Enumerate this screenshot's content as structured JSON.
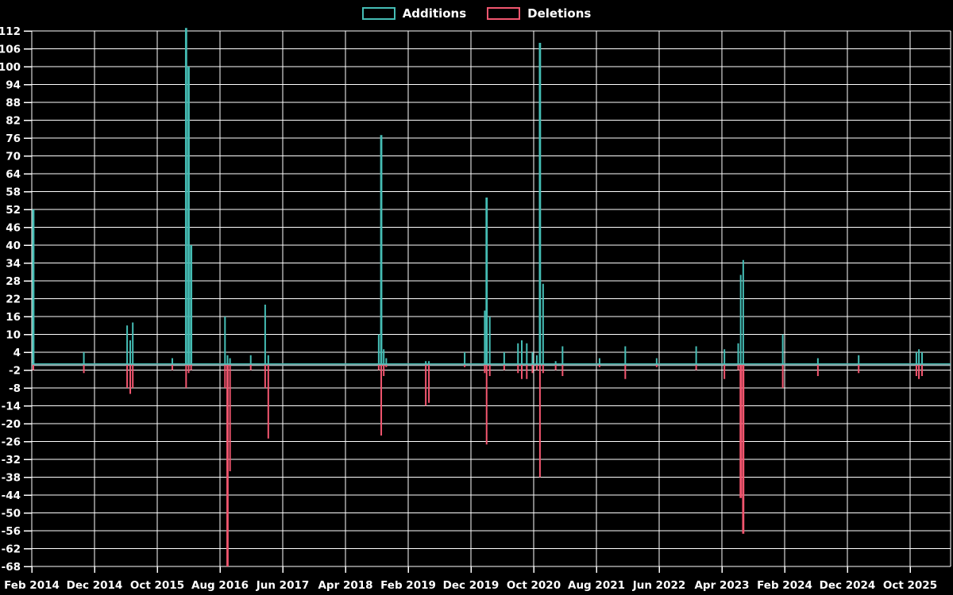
{
  "legend": {
    "items": [
      {
        "label": "Additions",
        "series": "additions"
      },
      {
        "label": "Deletions",
        "series": "deletions"
      }
    ]
  },
  "colors": {
    "background": "#000000",
    "grid": "#ffffff",
    "text": "#ffffff",
    "additions": "#45bdb5",
    "deletions": "#f2566f",
    "baseline_grey": "#9fb3b6"
  },
  "chart_data": {
    "type": "line",
    "description": "Weekly additions (positive teal spikes) and deletions (negative pink spikes) over time",
    "x_axis": {
      "tick_labels": [
        "Feb 2014",
        "Dec 2014",
        "Oct 2015",
        "Aug 2016",
        "Jun 2017",
        "Apr 2018",
        "Feb 2019",
        "Dec 2019",
        "Oct 2020",
        "Aug 2021",
        "Jun 2022",
        "Apr 2023",
        "Feb 2024",
        "Dec 2024",
        "Oct 2025"
      ],
      "tick_interval_months": 10,
      "start": "Feb 2014",
      "end": "Feb 2026"
    },
    "y_axis": {
      "min": -68,
      "max": 112,
      "tick_step": 6,
      "tick_labels": [
        "112",
        "106",
        "100",
        "94",
        "88",
        "82",
        "76",
        "70",
        "64",
        "58",
        "52",
        "46",
        "40",
        "34",
        "28",
        "22",
        "16",
        "10",
        "4",
        "-2",
        "-8",
        "-14",
        "-20",
        "-26",
        "-32",
        "-38",
        "-44",
        "-50",
        "-56",
        "-62",
        "-68"
      ]
    },
    "series_names": [
      "Additions",
      "Deletions"
    ],
    "baseline_value": 0,
    "events": [
      {
        "m": 0.25,
        "date": "Feb 2014",
        "additions": 52,
        "deletions": -2
      },
      {
        "m": 8.3,
        "date": "Oct 2014",
        "additions": 4,
        "deletions": -3
      },
      {
        "m": 15.2,
        "date": "May 2015",
        "additions": 13,
        "deletions": -8
      },
      {
        "m": 15.7,
        "date": "May 2015",
        "additions": 8,
        "deletions": -10
      },
      {
        "m": 16.1,
        "date": "Jun 2015",
        "additions": 14,
        "deletions": -8
      },
      {
        "m": 22.4,
        "date": "Dec 2015",
        "additions": 2,
        "deletions": -2
      },
      {
        "m": 24.6,
        "date": "Feb 2016",
        "additions": 113,
        "deletions": -8
      },
      {
        "m": 25.0,
        "date": "Mar 2016",
        "additions": 100,
        "deletions": -3
      },
      {
        "m": 25.4,
        "date": "Mar 2016",
        "additions": 40,
        "deletions": -2
      },
      {
        "m": 30.8,
        "date": "Aug 2016",
        "additions": 16,
        "deletions": -8
      },
      {
        "m": 31.2,
        "date": "Sep 2016",
        "additions": 3,
        "deletions": -68
      },
      {
        "m": 31.6,
        "date": "Sep 2016",
        "additions": 2,
        "deletions": -36
      },
      {
        "m": 34.9,
        "date": "Dec 2016",
        "additions": 3,
        "deletions": -2
      },
      {
        "m": 37.2,
        "date": "Mar 2017",
        "additions": 20,
        "deletions": -8
      },
      {
        "m": 37.7,
        "date": "Mar 2017",
        "additions": 3,
        "deletions": -25
      },
      {
        "m": 55.3,
        "date": "Sep 2018",
        "additions": 10,
        "deletions": -2
      },
      {
        "m": 55.7,
        "date": "Sep 2018",
        "additions": 77,
        "deletions": -24
      },
      {
        "m": 56.1,
        "date": "Oct 2018",
        "additions": 5,
        "deletions": -4
      },
      {
        "m": 56.5,
        "date": "Oct 2018",
        "additions": 2,
        "deletions": -1
      },
      {
        "m": 62.8,
        "date": "Apr 2019",
        "additions": 1,
        "deletions": -14
      },
      {
        "m": 63.3,
        "date": "May 2019",
        "additions": 1,
        "deletions": -13
      },
      {
        "m": 69.0,
        "date": "Nov 2019",
        "additions": 4,
        "deletions": -1
      },
      {
        "m": 72.2,
        "date": "Feb 2020",
        "additions": 18,
        "deletions": -3
      },
      {
        "m": 72.5,
        "date": "Feb 2020",
        "additions": 56,
        "deletions": -27
      },
      {
        "m": 73.0,
        "date": "Mar 2020",
        "additions": 16,
        "deletions": -4
      },
      {
        "m": 75.3,
        "date": "May 2020",
        "additions": 4,
        "deletions": -2
      },
      {
        "m": 77.5,
        "date": "Jul 2020",
        "additions": 7,
        "deletions": -3
      },
      {
        "m": 78.1,
        "date": "Aug 2020",
        "additions": 8,
        "deletions": -5
      },
      {
        "m": 78.9,
        "date": "Sep 2020",
        "additions": 7,
        "deletions": -5
      },
      {
        "m": 79.8,
        "date": "Oct 2020",
        "additions": 4,
        "deletions": -3
      },
      {
        "m": 80.5,
        "date": "Oct 2020",
        "additions": 3,
        "deletions": -2
      },
      {
        "m": 81.0,
        "date": "Nov 2020",
        "additions": 108,
        "deletions": -38
      },
      {
        "m": 81.5,
        "date": "Nov 2020",
        "additions": 27,
        "deletions": -3
      },
      {
        "m": 83.5,
        "date": "Jan 2021",
        "additions": 1,
        "deletions": -2
      },
      {
        "m": 84.6,
        "date": "Feb 2021",
        "additions": 6,
        "deletions": -4
      },
      {
        "m": 90.5,
        "date": "Aug 2021",
        "additions": 2,
        "deletions": -1
      },
      {
        "m": 94.6,
        "date": "Dec 2021",
        "additions": 6,
        "deletions": -5
      },
      {
        "m": 99.6,
        "date": "May 2022",
        "additions": 2,
        "deletions": -1
      },
      {
        "m": 105.9,
        "date": "Nov 2022",
        "additions": 6,
        "deletions": -2
      },
      {
        "m": 110.4,
        "date": "Apr 2023",
        "additions": 5,
        "deletions": -5
      },
      {
        "m": 112.6,
        "date": "Jun 2023",
        "additions": 7,
        "deletions": -2
      },
      {
        "m": 113.0,
        "date": "Jul 2023",
        "additions": 30,
        "deletions": -45
      },
      {
        "m": 113.4,
        "date": "Jul 2023",
        "additions": 35,
        "deletions": -57
      },
      {
        "m": 119.7,
        "date": "Jan 2024",
        "additions": 10,
        "deletions": -8
      },
      {
        "m": 125.3,
        "date": "Jul 2024",
        "additions": 2,
        "deletions": -4
      },
      {
        "m": 131.8,
        "date": "Jan 2025",
        "additions": 3,
        "deletions": -3
      },
      {
        "m": 141.0,
        "date": "Nov 2025",
        "additions": 4,
        "deletions": -4
      },
      {
        "m": 141.4,
        "date": "Nov 2025",
        "additions": 5,
        "deletions": -5
      },
      {
        "m": 141.9,
        "date": "Dec 2025",
        "additions": 4,
        "deletions": -4
      }
    ]
  }
}
